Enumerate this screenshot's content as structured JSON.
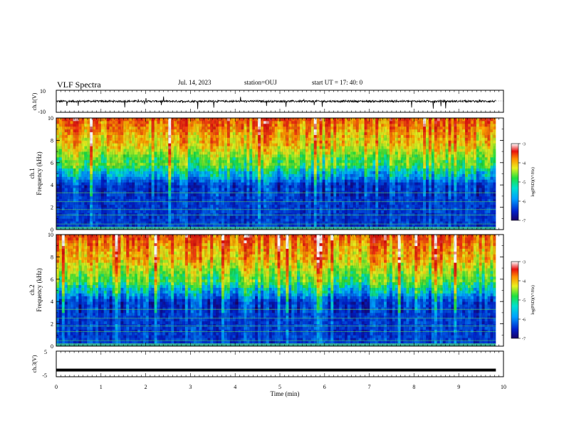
{
  "header": {
    "title": "VLF Spectra",
    "date": "Jul. 14, 2023",
    "station": "station=OUJ",
    "start": "start UT = 17: 40: 0"
  },
  "chart_data": [
    {
      "type": "line",
      "title": "VLF Spectra",
      "ylabel": "ch.1(V)",
      "yticks": [
        "10",
        "-10"
      ],
      "ylim": [
        -10,
        10
      ],
      "xlim": [
        0,
        10
      ],
      "description_values": {
        "baseline": 0,
        "typical_noise_amplitude": 1.5,
        "spike_amplitude_max": 6
      }
    },
    {
      "type": "heatmap",
      "ylabel": "ch.1\nFrequency (kHz)",
      "ylabel_line1": "ch.1",
      "ylabel_line2": "Frequency (kHz)",
      "yticks": [
        "0",
        "2",
        "4",
        "6",
        "8",
        "10"
      ],
      "ylim": [
        0,
        10
      ],
      "xlim": [
        0,
        9.83
      ],
      "colorbar": {
        "label": "log(PSD)(V²/Hz)",
        "ticks": [
          "-3",
          "-4",
          "-5",
          "-6",
          "-7"
        ],
        "range": [
          -7,
          -3
        ]
      },
      "typical_values": {
        "0_to_4_kHz": -6.3,
        "4_to_5_kHz": -5.6,
        "5_to_6_kHz": -5.0,
        "6_to_8_kHz": -4.2,
        "8_to_10_kHz": -3.6
      }
    },
    {
      "type": "heatmap",
      "ylabel": "ch.2\nFrequency (kHz)",
      "ylabel_line1": "ch.2",
      "ylabel_line2": "Frequency (kHz)",
      "yticks": [
        "0",
        "2",
        "4",
        "6",
        "8",
        "10"
      ],
      "ylim": [
        0,
        10
      ],
      "xlim": [
        0,
        9.83
      ],
      "colorbar": {
        "label": "log(PSD)(V²/Hz)",
        "ticks": [
          "-3",
          "-4",
          "-5",
          "-6",
          "-7"
        ],
        "range": [
          -7,
          -3
        ]
      },
      "typical_values": {
        "0_to_4_kHz": -6.3,
        "4_to_5_kHz": -5.6,
        "5_to_6_kHz": -5.0,
        "6_to_8_kHz": -4.2,
        "8_to_10_kHz": -3.6
      }
    },
    {
      "type": "line",
      "ylabel": "ch.3(V)",
      "yticks": [
        "5",
        "-5"
      ],
      "ylim": [
        -5,
        5
      ],
      "xlim": [
        0,
        10
      ],
      "constant_value": -2.4
    }
  ],
  "xaxis": {
    "label": "Time (min)",
    "ticks": [
      "0",
      "1",
      "2",
      "3",
      "4",
      "5",
      "6",
      "7",
      "8",
      "9",
      "10"
    ],
    "range": [
      0,
      10
    ]
  },
  "colors": {
    "red": "#e8230d",
    "orange": "#ff8a00",
    "yellow": "#f0e020",
    "green": "#20e060",
    "cyan": "#00c8f0",
    "blue": "#0044d8",
    "navy": "#001080",
    "trace": "#000000"
  }
}
